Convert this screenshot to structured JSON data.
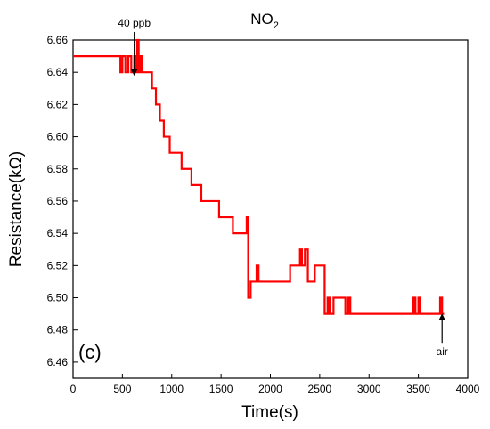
{
  "chart_data": {
    "type": "line",
    "title": "NO",
    "title_subscript": "2",
    "panel_label": "(c)",
    "xlabel": "Time(s)",
    "ylabel": "Resistance(kΩ)",
    "xlim": [
      0,
      4000
    ],
    "ylim": [
      6.45,
      6.66
    ],
    "x_ticks": [
      "0",
      "500",
      "1000",
      "1500",
      "2000",
      "2500",
      "3000",
      "3500",
      "4000"
    ],
    "y_ticks": [
      "6.46",
      "6.48",
      "6.50",
      "6.52",
      "6.54",
      "6.56",
      "6.58",
      "6.60",
      "6.62",
      "6.64",
      "6.66"
    ],
    "grid": false,
    "colors": {
      "series": "#ff0000",
      "axis": "#000000"
    },
    "series": [
      {
        "x": [
          0,
          480,
          480,
          500,
          500,
          530,
          530,
          560,
          560,
          590,
          590,
          620,
          620,
          640,
          640,
          650,
          650,
          665,
          665,
          680,
          680,
          700,
          700,
          800,
          800,
          840,
          840,
          880,
          880,
          920,
          920,
          980,
          980,
          1060,
          1060,
          1100,
          1100,
          1150,
          1150,
          1200,
          1200,
          1260,
          1260,
          1300,
          1300,
          1420,
          1420,
          1480,
          1480,
          1560,
          1560,
          1620,
          1620,
          1760,
          1760,
          1775,
          1775,
          1790,
          1790,
          1800,
          1800,
          1860,
          1860,
          1880,
          1880,
          1920,
          1920,
          2000,
          2000,
          2200,
          2200,
          2300,
          2300,
          2320,
          2320,
          2350,
          2350,
          2380,
          2380,
          2420,
          2420,
          2450,
          2450,
          2550,
          2550,
          2580,
          2580,
          2600,
          2600,
          2640,
          2640,
          2760,
          2760,
          2790,
          2790,
          2810,
          2810,
          2840,
          2840,
          3450,
          3450,
          3470,
          3470,
          3500,
          3500,
          3520,
          3520,
          3720,
          3720,
          3740,
          3740,
          3760
        ],
        "y": [
          6.65,
          6.65,
          6.64,
          6.64,
          6.65,
          6.65,
          6.64,
          6.64,
          6.65,
          6.65,
          6.64,
          6.64,
          6.65,
          6.65,
          6.64,
          6.64,
          6.66,
          6.66,
          6.64,
          6.64,
          6.65,
          6.65,
          6.64,
          6.64,
          6.63,
          6.63,
          6.62,
          6.62,
          6.61,
          6.61,
          6.6,
          6.6,
          6.59,
          6.59,
          6.59,
          6.59,
          6.58,
          6.58,
          6.58,
          6.58,
          6.57,
          6.57,
          6.57,
          6.57,
          6.56,
          6.56,
          6.56,
          6.56,
          6.55,
          6.55,
          6.55,
          6.55,
          6.54,
          6.54,
          6.55,
          6.55,
          6.5,
          6.5,
          6.5,
          6.5,
          6.51,
          6.51,
          6.52,
          6.52,
          6.51,
          6.51,
          6.51,
          6.51,
          6.51,
          6.51,
          6.52,
          6.52,
          6.53,
          6.53,
          6.52,
          6.52,
          6.53,
          6.53,
          6.51,
          6.51,
          6.51,
          6.51,
          6.52,
          6.52,
          6.49,
          6.49,
          6.5,
          6.5,
          6.49,
          6.49,
          6.5,
          6.5,
          6.49,
          6.49,
          6.5,
          6.5,
          6.49,
          6.49,
          6.49,
          6.49,
          6.5,
          6.5,
          6.49,
          6.49,
          6.5,
          6.5,
          6.49,
          6.49,
          6.5,
          6.5,
          6.49,
          6.49
        ]
      }
    ],
    "annotations": [
      {
        "label": "40 ppb",
        "x": 620,
        "y_from": 6.665,
        "y_to": 6.64,
        "direction": "down"
      },
      {
        "label": "air",
        "x": 3740,
        "y_from": 6.472,
        "y_to": 6.488,
        "direction": "up"
      }
    ]
  }
}
